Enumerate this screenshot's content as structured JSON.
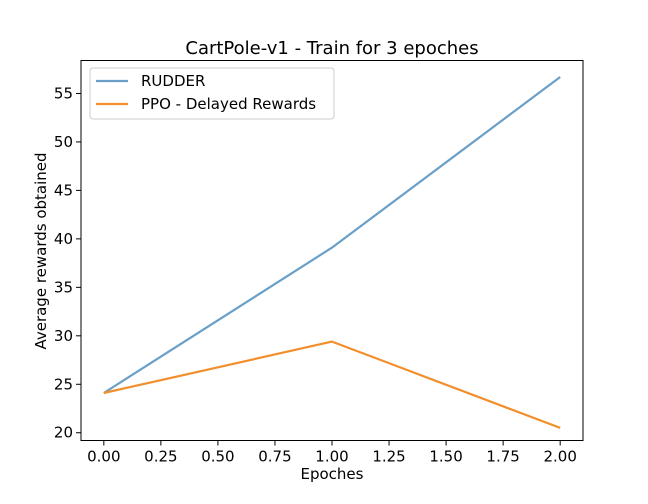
{
  "chart_data": {
    "type": "line",
    "title": "CartPole-v1 - Train for 3 epoches",
    "xlabel": "Epoches",
    "ylabel": "Average rewards obtained",
    "xlim": [
      -0.1,
      2.1
    ],
    "ylim": [
      19.2,
      58.4
    ],
    "xticks": [
      0.0,
      0.25,
      0.5,
      0.75,
      1.0,
      1.25,
      1.5,
      1.75,
      2.0
    ],
    "xtick_labels": [
      "0.00",
      "0.25",
      "0.50",
      "0.75",
      "1.00",
      "1.25",
      "1.50",
      "1.75",
      "2.00"
    ],
    "yticks": [
      20,
      25,
      30,
      35,
      40,
      45,
      50,
      55
    ],
    "ytick_labels": [
      "20",
      "25",
      "30",
      "35",
      "40",
      "45",
      "50",
      "55"
    ],
    "grid": false,
    "legend_position": "top-left",
    "x": [
      0,
      1,
      2
    ],
    "series": [
      {
        "name": "RUDDER",
        "values": [
          24.1,
          39.1,
          56.7
        ],
        "color": "#6a9fc8"
      },
      {
        "name": "PPO - Delayed Rewards",
        "values": [
          24.1,
          29.4,
          20.5
        ],
        "color": "#f28e2b"
      }
    ]
  }
}
